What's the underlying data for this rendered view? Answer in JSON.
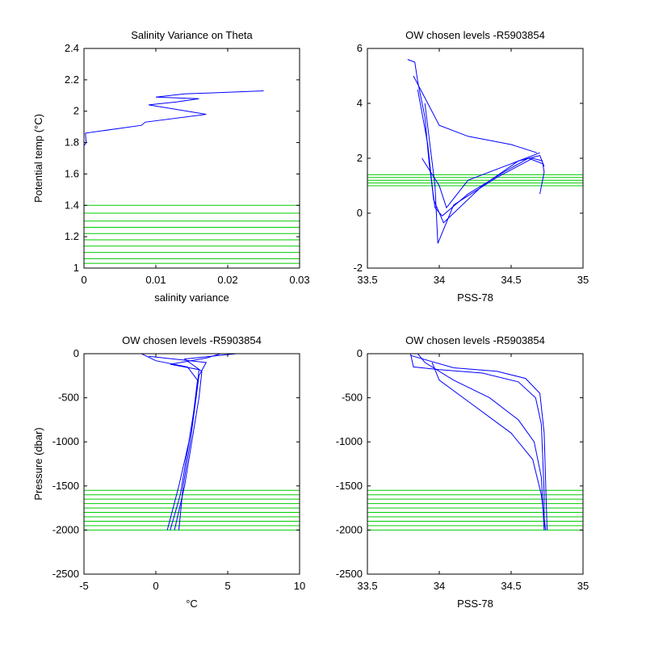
{
  "colors": {
    "profile": "#0000ff",
    "levels": "#00cc00",
    "axes": "#000000",
    "background": "#ffffff"
  },
  "chart_data": [
    {
      "type": "line",
      "title": "Salinity Variance on Theta",
      "xlabel": "salinity variance",
      "ylabel": "Potential temp (°C)",
      "xlim": [
        0,
        0.03
      ],
      "ylim": [
        1,
        2.4
      ],
      "xticks": [
        "0",
        "0.01",
        "0.02",
        "0.03"
      ],
      "yticks": [
        "1",
        "1.2",
        "1.4",
        "1.6",
        "1.8",
        "2",
        "2.2",
        "2.4"
      ],
      "series": [
        {
          "points": [
            [
              0,
              1.78
            ],
            [
              0.0003,
              1.8
            ],
            [
              0.0002,
              1.86
            ],
            [
              0.008,
              1.91
            ],
            [
              0.0085,
              1.93
            ],
            [
              0.017,
              1.98
            ],
            [
              0.009,
              2.04
            ],
            [
              0.013,
              2.06
            ],
            [
              0.016,
              2.08
            ],
            [
              0.01,
              2.09
            ],
            [
              0.014,
              2.11
            ],
            [
              0.025,
              2.13
            ]
          ]
        }
      ],
      "levels": [
        1.03,
        1.06,
        1.1,
        1.14,
        1.18,
        1.22,
        1.26,
        1.3,
        1.35,
        1.4
      ]
    },
    {
      "type": "line",
      "title": "OW chosen levels -R5903854",
      "xlabel": "PSS-78",
      "ylabel": "",
      "xlim": [
        33.5,
        35
      ],
      "ylim": [
        -2,
        6
      ],
      "xticks": [
        "33.5",
        "34",
        "34.5",
        "35"
      ],
      "yticks": [
        "-2",
        "0",
        "2",
        "4",
        "6"
      ],
      "series": [
        {
          "points": [
            [
              33.78,
              5.6
            ],
            [
              33.83,
              5.5
            ],
            [
              33.85,
              4.8
            ],
            [
              33.9,
              3.5
            ],
            [
              33.93,
              1.8
            ],
            [
              33.97,
              0.2
            ],
            [
              34.02,
              -0.1
            ],
            [
              34.2,
              0.7
            ],
            [
              34.45,
              1.5
            ],
            [
              34.62,
              2.0
            ],
            [
              34.72,
              1.8
            ],
            [
              34.73,
              1.5
            ],
            [
              34.7,
              0.7
            ]
          ]
        },
        {
          "points": [
            [
              33.85,
              4.5
            ],
            [
              33.92,
              2.5
            ],
            [
              33.96,
              0.5
            ],
            [
              34.03,
              -0.35
            ],
            [
              34.3,
              1.0
            ],
            [
              34.55,
              1.9
            ],
            [
              34.7,
              2.1
            ],
            [
              34.73,
              1.7
            ]
          ]
        },
        {
          "points": [
            [
              33.9,
              4.0
            ],
            [
              33.97,
              1.0
            ],
            [
              33.99,
              -1.1
            ],
            [
              34.1,
              0.3
            ],
            [
              34.4,
              1.3
            ],
            [
              34.65,
              2.0
            ],
            [
              34.72,
              1.9
            ]
          ]
        },
        {
          "points": [
            [
              33.82,
              5.0
            ],
            [
              34.0,
              3.2
            ],
            [
              34.2,
              2.8
            ],
            [
              34.5,
              2.5
            ],
            [
              34.68,
              2.2
            ]
          ]
        },
        {
          "points": [
            [
              33.88,
              2.0
            ],
            [
              34.0,
              1.0
            ],
            [
              34.05,
              0.2
            ],
            [
              34.2,
              1.2
            ],
            [
              34.5,
              1.8
            ],
            [
              34.7,
              2.2
            ]
          ]
        }
      ],
      "levels": [
        1.0,
        1.1,
        1.2,
        1.3,
        1.4
      ]
    },
    {
      "type": "line",
      "title": "OW chosen levels -R5903854",
      "xlabel": "°C",
      "ylabel": "Pressure (dbar)",
      "xlim": [
        -5,
        10
      ],
      "ylim": [
        -2500,
        0
      ],
      "xticks": [
        "-5",
        "0",
        "5",
        "10"
      ],
      "yticks": [
        "-2500",
        "-2000",
        "-1500",
        "-1000",
        "-500",
        "0"
      ],
      "series": [
        {
          "points": [
            [
              4.5,
              0
            ],
            [
              3.5,
              -50
            ],
            [
              1.0,
              -120
            ],
            [
              3.0,
              -180
            ],
            [
              2.8,
              -500
            ],
            [
              2.3,
              -1000
            ],
            [
              1.6,
              -1500
            ],
            [
              0.8,
              -2000
            ]
          ]
        },
        {
          "points": [
            [
              5.6,
              0
            ],
            [
              2.0,
              -60
            ],
            [
              3.2,
              -200
            ],
            [
              3.0,
              -500
            ],
            [
              2.5,
              -1000
            ],
            [
              2.0,
              -1500
            ],
            [
              1.3,
              -2000
            ]
          ]
        },
        {
          "points": [
            [
              -1.0,
              0
            ],
            [
              0.0,
              -80
            ],
            [
              2.2,
              -150
            ],
            [
              2.9,
              -300
            ],
            [
              2.6,
              -700
            ],
            [
              2.2,
              -1100
            ],
            [
              1.7,
              -1600
            ],
            [
              1.0,
              -2000
            ]
          ]
        },
        {
          "points": [
            [
              -0.5,
              -30
            ],
            [
              3.5,
              -100
            ],
            [
              3.0,
              -250
            ],
            [
              2.8,
              -500
            ],
            [
              2.4,
              -1000
            ],
            [
              1.9,
              -1500
            ],
            [
              1.6,
              -2000
            ]
          ]
        }
      ],
      "levels": [
        -1550,
        -1600,
        -1650,
        -1700,
        -1750,
        -1800,
        -1850,
        -1900,
        -1950,
        -2000
      ]
    },
    {
      "type": "line",
      "title": "OW chosen levels -R5903854",
      "xlabel": "PSS-78",
      "ylabel": "",
      "xlim": [
        33.5,
        35
      ],
      "ylim": [
        -2500,
        0
      ],
      "xticks": [
        "33.5",
        "34",
        "34.5",
        "35"
      ],
      "yticks": [
        "-2500",
        "-2000",
        "-1500",
        "-1000",
        "-500",
        "0"
      ],
      "series": [
        {
          "points": [
            [
              33.8,
              0
            ],
            [
              33.82,
              -150
            ],
            [
              34.0,
              -180
            ],
            [
              34.3,
              -220
            ],
            [
              34.55,
              -320
            ],
            [
              34.67,
              -500
            ],
            [
              34.71,
              -800
            ],
            [
              34.72,
              -1200
            ],
            [
              34.73,
              -1600
            ],
            [
              34.73,
              -2000
            ]
          ]
        },
        {
          "points": [
            [
              33.85,
              0
            ],
            [
              33.9,
              -100
            ],
            [
              34.1,
              -300
            ],
            [
              34.35,
              -500
            ],
            [
              34.55,
              -750
            ],
            [
              34.66,
              -1000
            ],
            [
              34.71,
              -1400
            ],
            [
              34.73,
              -2000
            ]
          ]
        },
        {
          "points": [
            [
              33.95,
              -100
            ],
            [
              34.0,
              -300
            ],
            [
              34.25,
              -600
            ],
            [
              34.5,
              -900
            ],
            [
              34.65,
              -1200
            ],
            [
              34.71,
              -1600
            ],
            [
              34.74,
              -2000
            ]
          ]
        },
        {
          "points": [
            [
              33.8,
              -20
            ],
            [
              34.1,
              -160
            ],
            [
              34.4,
              -200
            ],
            [
              34.6,
              -280
            ],
            [
              34.7,
              -450
            ],
            [
              34.73,
              -900
            ],
            [
              34.75,
              -2000
            ]
          ]
        }
      ],
      "levels": [
        -1550,
        -1600,
        -1650,
        -1700,
        -1750,
        -1800,
        -1850,
        -1900,
        -1950,
        -2000
      ]
    }
  ]
}
